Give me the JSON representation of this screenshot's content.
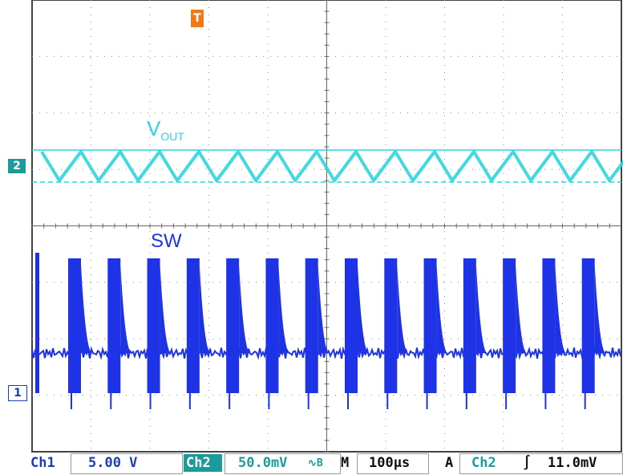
{
  "chart_data": {
    "type": "line",
    "title": "",
    "grid": true,
    "divisions": {
      "x": 10,
      "y": 8
    },
    "series": [
      {
        "name": "VOUT",
        "channel": "Ch2",
        "color": "#2bd6dd",
        "waveform": "triangle ripple",
        "cycles": 15
      },
      {
        "name": "SW",
        "channel": "Ch1",
        "color": "#1e33e6",
        "waveform": "switching bursts",
        "pulses": 14
      }
    ],
    "channel_markers": [
      "2",
      "1"
    ],
    "trigger_marker": "T",
    "status_bar": {
      "ch1_label": "Ch1",
      "ch1_scale": "5.00 V",
      "ch2_label": "Ch2",
      "ch2_scale": "50.0mV",
      "bandwidth_symbol": "∿B",
      "timebase_label": "M",
      "timebase_value": "100µs",
      "acq_label": "A",
      "trigger_source": "Ch2",
      "trigger_slope": "∫",
      "trigger_level": "11.0mV"
    },
    "colors": {
      "grid": "#8a8a8a",
      "frame": "#444444",
      "ch1": "#1e33e6",
      "ch2": "#2bd6dd",
      "status_blue": "#1a3fb0",
      "status_teal": "#1c9b9b"
    }
  }
}
